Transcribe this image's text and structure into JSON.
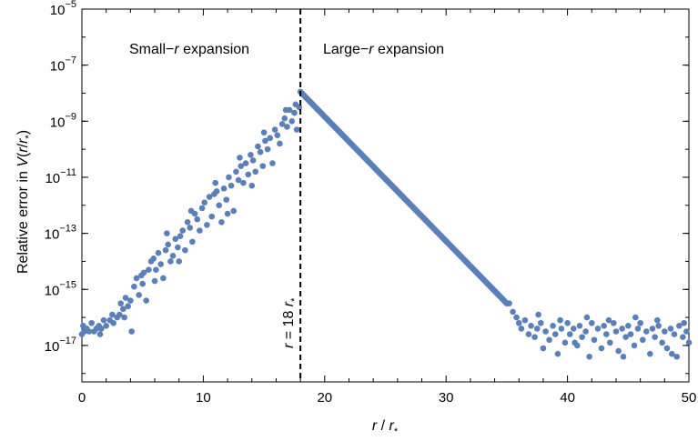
{
  "chart_data": {
    "type": "scatter",
    "title": "",
    "xlabel": {
      "base": "r",
      "sep": " / ",
      "unit_base": "r",
      "unit_sub": "*"
    },
    "ylabel": {
      "prefix": "Relative error in ",
      "func": "V",
      "open": "(",
      "var": "r",
      "slash": "/",
      "unit_base": "r",
      "unit_sub": "*",
      "close": ")"
    },
    "xlim": [
      0,
      50
    ],
    "ylim_log10": [
      -18.3,
      -5
    ],
    "y_scale": "log",
    "grid": false,
    "legend": "none",
    "marker_color": "#5b7fb9",
    "x_ticks": [
      {
        "value": 0,
        "label": "0"
      },
      {
        "value": 10,
        "label": "10"
      },
      {
        "value": 20,
        "label": "20"
      },
      {
        "value": 30,
        "label": "30"
      },
      {
        "value": 40,
        "label": "40"
      },
      {
        "value": 50,
        "label": "50"
      }
    ],
    "y_ticks": [
      {
        "exp": -5,
        "base": "10",
        "sup": "−5"
      },
      {
        "exp": -7,
        "base": "10",
        "sup": "−7"
      },
      {
        "exp": -9,
        "base": "10",
        "sup": "−9"
      },
      {
        "exp": -11,
        "base": "10",
        "sup": "−11"
      },
      {
        "exp": -13,
        "base": "10",
        "sup": "−13"
      },
      {
        "exp": -15,
        "base": "10",
        "sup": "−15"
      },
      {
        "exp": -17,
        "base": "10",
        "sup": "−17"
      }
    ],
    "divider": {
      "x": 18,
      "label": {
        "lhs": "r",
        "mid": " = 18 ",
        "unit_base": "r",
        "unit_sub": "*"
      }
    },
    "region_labels": [
      {
        "pre": "Small−",
        "var": "r",
        "post": " expansion"
      },
      {
        "pre": "Large−",
        "var": "r",
        "post": " expansion"
      }
    ],
    "series": [
      {
        "points_log10": [
          [
            0.0,
            -16.6
          ],
          [
            0.1,
            -16.3
          ],
          [
            0.2,
            -16.5
          ],
          [
            0.4,
            -16.4
          ],
          [
            0.6,
            -16.5
          ],
          [
            0.8,
            -16.2
          ],
          [
            1.0,
            -16.5
          ],
          [
            1.2,
            -16.4
          ],
          [
            1.4,
            -16.3
          ],
          [
            1.6,
            -16.4
          ],
          [
            1.8,
            -16.1
          ],
          [
            2.0,
            -16.3
          ],
          [
            2.3,
            -16.1
          ],
          [
            2.6,
            -16.2
          ],
          [
            2.9,
            -16.0
          ],
          [
            3.1,
            -15.9
          ],
          [
            3.2,
            -15.5
          ],
          [
            3.4,
            -15.7
          ],
          [
            3.6,
            -15.3
          ],
          [
            3.8,
            -15.6
          ],
          [
            4.0,
            -15.4
          ],
          [
            4.1,
            -16.5
          ],
          [
            4.3,
            -14.9
          ],
          [
            4.5,
            -14.6
          ],
          [
            4.7,
            -15.2
          ],
          [
            4.9,
            -14.5
          ],
          [
            5.1,
            -14.4
          ],
          [
            5.3,
            -15.4
          ],
          [
            5.5,
            -14.3
          ],
          [
            5.7,
            -14.0
          ],
          [
            5.9,
            -13.9
          ],
          [
            6.1,
            -14.3
          ],
          [
            6.3,
            -13.7
          ],
          [
            6.5,
            -14.1
          ],
          [
            6.7,
            -14.6
          ],
          [
            6.9,
            -13.6
          ],
          [
            7.1,
            -13.4
          ],
          [
            7.3,
            -14.0
          ],
          [
            7.5,
            -13.8
          ],
          [
            7.7,
            -13.2
          ],
          [
            7.9,
            -13.5
          ],
          [
            8.1,
            -13.1
          ],
          [
            8.3,
            -12.9
          ],
          [
            8.5,
            -13.6
          ],
          [
            8.7,
            -12.6
          ],
          [
            8.9,
            -12.8
          ],
          [
            9.1,
            -13.3
          ],
          [
            9.3,
            -12.3
          ],
          [
            9.5,
            -12.5
          ],
          [
            9.7,
            -12.9
          ],
          [
            9.9,
            -12.1
          ],
          [
            10.1,
            -11.9
          ],
          [
            10.3,
            -12.7
          ],
          [
            10.5,
            -11.7
          ],
          [
            10.7,
            -12.4
          ],
          [
            10.9,
            -11.6
          ],
          [
            11.1,
            -11.5
          ],
          [
            11.3,
            -12.0
          ],
          [
            11.5,
            -12.6
          ],
          [
            11.7,
            -11.4
          ],
          [
            11.9,
            -11.8
          ],
          [
            12.1,
            -11.0
          ],
          [
            12.3,
            -11.3
          ],
          [
            12.5,
            -12.2
          ],
          [
            12.7,
            -10.8
          ],
          [
            12.9,
            -11.1
          ],
          [
            13.1,
            -10.6
          ],
          [
            13.3,
            -11.2
          ],
          [
            13.5,
            -10.5
          ],
          [
            13.7,
            -10.9
          ],
          [
            13.9,
            -10.2
          ],
          [
            14.1,
            -10.4
          ],
          [
            14.3,
            -10.8
          ],
          [
            14.5,
            -9.9
          ],
          [
            14.7,
            -10.1
          ],
          [
            14.9,
            -10.6
          ],
          [
            15.1,
            -9.7
          ],
          [
            15.3,
            -10.0
          ],
          [
            15.5,
            -9.6
          ],
          [
            15.7,
            -10.5
          ],
          [
            15.9,
            -9.3
          ],
          [
            16.1,
            -9.5
          ],
          [
            16.3,
            -9.8
          ],
          [
            16.5,
            -9.1
          ],
          [
            16.7,
            -8.9
          ],
          [
            16.9,
            -9.2
          ],
          [
            17.1,
            -8.6
          ],
          [
            17.3,
            -9.0
          ],
          [
            17.5,
            -8.7
          ],
          [
            17.7,
            -9.3
          ],
          [
            17.9,
            -8.5
          ],
          [
            3.5,
            -16.0
          ],
          [
            5.0,
            -14.8
          ],
          [
            7.0,
            -13.0
          ],
          [
            9.0,
            -12.2
          ],
          [
            11.0,
            -11.2
          ],
          [
            13.0,
            -10.3
          ],
          [
            15.0,
            -9.4
          ],
          [
            16.8,
            -8.6
          ],
          [
            17.6,
            -8.4
          ],
          [
            12.0,
            -12.3
          ],
          [
            14.0,
            -11.3
          ],
          [
            8.0,
            -14.0
          ],
          [
            6.0,
            -14.7
          ],
          [
            2.5,
            -15.9
          ],
          [
            1.5,
            -16.6
          ]
        ],
        "large_r": {
          "x_start": 18.0,
          "x_end": 35.0,
          "log10_start": -7.95,
          "log10_end": -15.5,
          "step": 0.1
        }
      },
      {
        "points_log10": [
          [
            35.2,
            -15.5
          ],
          [
            35.5,
            -15.8
          ],
          [
            35.8,
            -16.0
          ],
          [
            36.0,
            -16.2
          ],
          [
            36.2,
            -16.4
          ],
          [
            36.5,
            -16.1
          ],
          [
            36.8,
            -16.6
          ],
          [
            37.0,
            -16.3
          ],
          [
            37.3,
            -16.7
          ],
          [
            37.5,
            -16.4
          ],
          [
            37.8,
            -16.2
          ],
          [
            38.0,
            -17.1
          ],
          [
            38.2,
            -16.5
          ],
          [
            38.5,
            -16.8
          ],
          [
            38.8,
            -16.3
          ],
          [
            39.0,
            -16.6
          ],
          [
            39.2,
            -17.3
          ],
          [
            39.5,
            -16.4
          ],
          [
            39.8,
            -16.9
          ],
          [
            40.0,
            -16.2
          ],
          [
            40.2,
            -16.6
          ],
          [
            40.5,
            -16.4
          ],
          [
            40.8,
            -17.0
          ],
          [
            41.0,
            -16.3
          ],
          [
            41.2,
            -16.7
          ],
          [
            41.5,
            -16.5
          ],
          [
            41.8,
            -17.4
          ],
          [
            42.0,
            -16.2
          ],
          [
            42.2,
            -16.8
          ],
          [
            42.5,
            -16.4
          ],
          [
            42.8,
            -17.1
          ],
          [
            43.0,
            -16.3
          ],
          [
            43.2,
            -16.6
          ],
          [
            43.5,
            -16.9
          ],
          [
            43.8,
            -16.2
          ],
          [
            44.0,
            -16.5
          ],
          [
            44.2,
            -17.2
          ],
          [
            44.5,
            -16.4
          ],
          [
            44.8,
            -16.7
          ],
          [
            45.0,
            -16.3
          ],
          [
            45.2,
            -16.6
          ],
          [
            45.5,
            -17.0
          ],
          [
            45.8,
            -16.4
          ],
          [
            46.0,
            -16.2
          ],
          [
            46.2,
            -16.8
          ],
          [
            46.5,
            -16.5
          ],
          [
            46.8,
            -17.3
          ],
          [
            47.0,
            -16.4
          ],
          [
            47.2,
            -16.7
          ],
          [
            47.5,
            -16.3
          ],
          [
            47.8,
            -16.9
          ],
          [
            48.0,
            -16.5
          ],
          [
            48.2,
            -17.1
          ],
          [
            48.5,
            -16.4
          ],
          [
            48.8,
            -16.6
          ],
          [
            49.0,
            -17.4
          ],
          [
            49.2,
            -16.3
          ],
          [
            49.5,
            -16.7
          ],
          [
            49.8,
            -16.5
          ],
          [
            50.0,
            -16.9
          ],
          [
            37.6,
            -15.9
          ],
          [
            39.4,
            -16.1
          ],
          [
            41.6,
            -16.0
          ],
          [
            43.4,
            -16.1
          ],
          [
            45.6,
            -16.0
          ],
          [
            47.4,
            -16.1
          ],
          [
            49.6,
            -16.2
          ],
          [
            40.6,
            -16.9
          ],
          [
            44.6,
            -17.4
          ],
          [
            48.6,
            -17.3
          ]
        ]
      }
    ]
  }
}
